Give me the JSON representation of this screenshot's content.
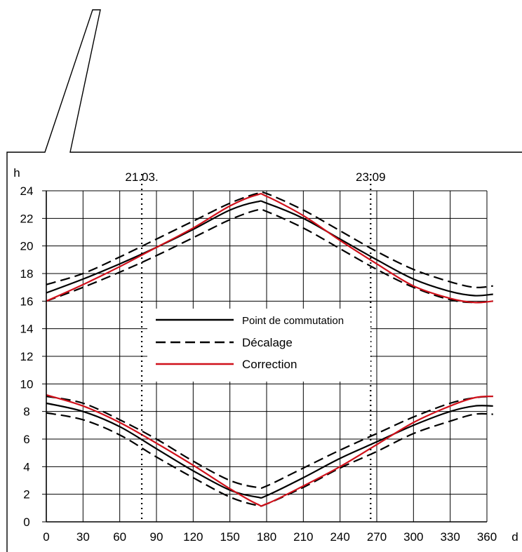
{
  "chart_data": {
    "type": "line",
    "title": "",
    "xlabel": "d",
    "ylabel": "h",
    "xlim": [
      0,
      360
    ],
    "ylim": [
      0,
      24
    ],
    "x_ticks": [
      0,
      30,
      60,
      90,
      120,
      150,
      180,
      210,
      240,
      270,
      300,
      330,
      360
    ],
    "y_ticks": [
      0,
      2,
      4,
      6,
      8,
      10,
      12,
      14,
      16,
      18,
      20,
      22,
      24
    ],
    "grid": true,
    "legend_position": "center",
    "markers": [
      {
        "x": 78,
        "label": "21.03."
      },
      {
        "x": 265,
        "label": "23.09"
      }
    ],
    "legend": [
      {
        "label": "Point de commutation",
        "style": "solid",
        "color": "#000000"
      },
      {
        "label": "Décalage",
        "style": "dashed",
        "color": "#000000"
      },
      {
        "label": "Correction",
        "style": "solid",
        "color": "#d0101a"
      }
    ],
    "x": [
      0,
      30,
      60,
      90,
      120,
      150,
      172,
      180,
      210,
      240,
      270,
      300,
      330,
      350,
      365
    ],
    "series": [
      {
        "group": "Point de commutation",
        "style": "solid",
        "color": "#000000",
        "values": [
          16.6,
          17.6,
          18.7,
          19.9,
          21.2,
          22.6,
          23.2,
          23.1,
          22.0,
          20.5,
          19.0,
          17.6,
          16.7,
          16.4,
          16.5
        ]
      },
      {
        "group": "Point de commutation",
        "style": "solid",
        "color": "#000000",
        "values": [
          8.6,
          8.0,
          6.9,
          5.3,
          3.7,
          2.3,
          1.8,
          1.9,
          3.2,
          4.6,
          5.8,
          7.0,
          8.0,
          8.4,
          8.4
        ]
      },
      {
        "group": "Décalage",
        "style": "dashed",
        "color": "#000000",
        "values": [
          17.2,
          18.0,
          19.2,
          20.5,
          21.8,
          23.1,
          23.8,
          23.8,
          22.6,
          21.1,
          19.6,
          18.3,
          17.4,
          17.0,
          17.1
        ]
      },
      {
        "group": "Décalage",
        "style": "dashed",
        "color": "#000000",
        "values": [
          16.0,
          17.0,
          18.1,
          19.3,
          20.6,
          21.9,
          22.6,
          22.5,
          21.3,
          19.8,
          18.3,
          17.0,
          16.1,
          15.9,
          16.0
        ]
      },
      {
        "group": "Décalage",
        "style": "dashed",
        "color": "#000000",
        "values": [
          9.1,
          8.6,
          7.4,
          6.0,
          4.4,
          3.0,
          2.5,
          2.6,
          3.9,
          5.2,
          6.4,
          7.6,
          8.6,
          9.0,
          9.1
        ]
      },
      {
        "group": "Décalage",
        "style": "dashed",
        "color": "#000000",
        "values": [
          7.9,
          7.4,
          6.3,
          4.7,
          3.2,
          1.8,
          1.2,
          1.3,
          2.5,
          3.9,
          5.1,
          6.4,
          7.3,
          7.8,
          7.8
        ]
      },
      {
        "group": "Correction",
        "style": "solid",
        "color": "#d0101a",
        "values": [
          16.0,
          17.2,
          18.5,
          19.9,
          21.3,
          22.9,
          23.7,
          23.6,
          22.2,
          20.4,
          18.7,
          17.1,
          16.2,
          15.9,
          16.0
        ]
      },
      {
        "group": "Correction",
        "style": "solid",
        "color": "#d0101a",
        "values": [
          9.2,
          8.4,
          7.2,
          5.7,
          4.1,
          2.4,
          1.3,
          1.3,
          2.6,
          4.0,
          5.6,
          7.2,
          8.4,
          9.0,
          9.1
        ]
      }
    ]
  }
}
